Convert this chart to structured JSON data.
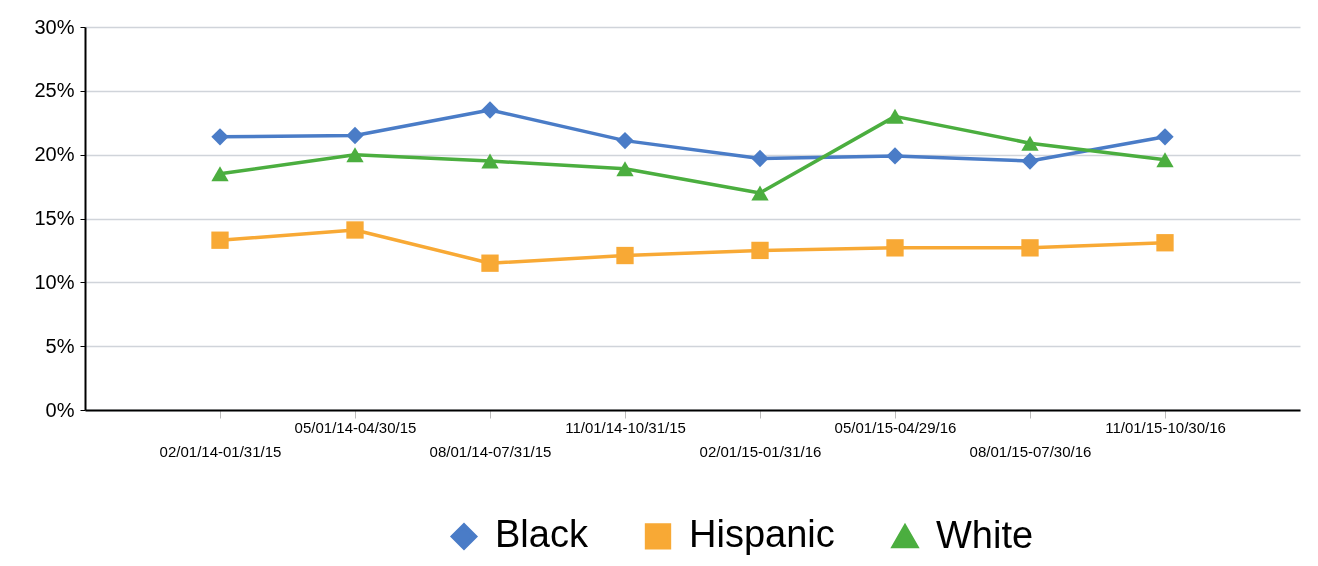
{
  "chart_data": {
    "type": "line",
    "categories": [
      "02/01/14-01/31/15",
      "05/01/14-04/30/15",
      "08/01/14-07/31/15",
      "11/01/14-10/31/15",
      "02/01/15-01/31/16",
      "05/01/15-04/29/16",
      "08/01/15-07/30/16",
      "11/01/15-10/30/16"
    ],
    "series": [
      {
        "name": "Black",
        "color": "#4a7cc7",
        "marker": "diamond",
        "values": [
          21.4,
          21.5,
          23.5,
          21.1,
          19.7,
          19.9,
          19.5,
          21.4
        ]
      },
      {
        "name": "Hispanic",
        "color": "#f8a935",
        "marker": "square",
        "values": [
          13.3,
          14.1,
          11.5,
          12.1,
          12.5,
          12.7,
          12.7,
          13.1
        ]
      },
      {
        "name": "White",
        "color": "#4bae3f",
        "marker": "triangle",
        "values": [
          18.5,
          20.0,
          19.5,
          18.9,
          17.0,
          23.0,
          20.9,
          19.6
        ]
      }
    ],
    "ylim": [
      0,
      30
    ],
    "yticks": [
      {
        "value": 0,
        "label": "0%"
      },
      {
        "value": 5,
        "label": "5%"
      },
      {
        "value": 10,
        "label": "10%"
      },
      {
        "value": 15,
        "label": "15%"
      },
      {
        "value": 20,
        "label": "20%"
      },
      {
        "value": 25,
        "label": "25%"
      },
      {
        "value": 30,
        "label": "30%"
      }
    ],
    "grid": "y",
    "legend": "bottom",
    "line_style": "solid"
  }
}
